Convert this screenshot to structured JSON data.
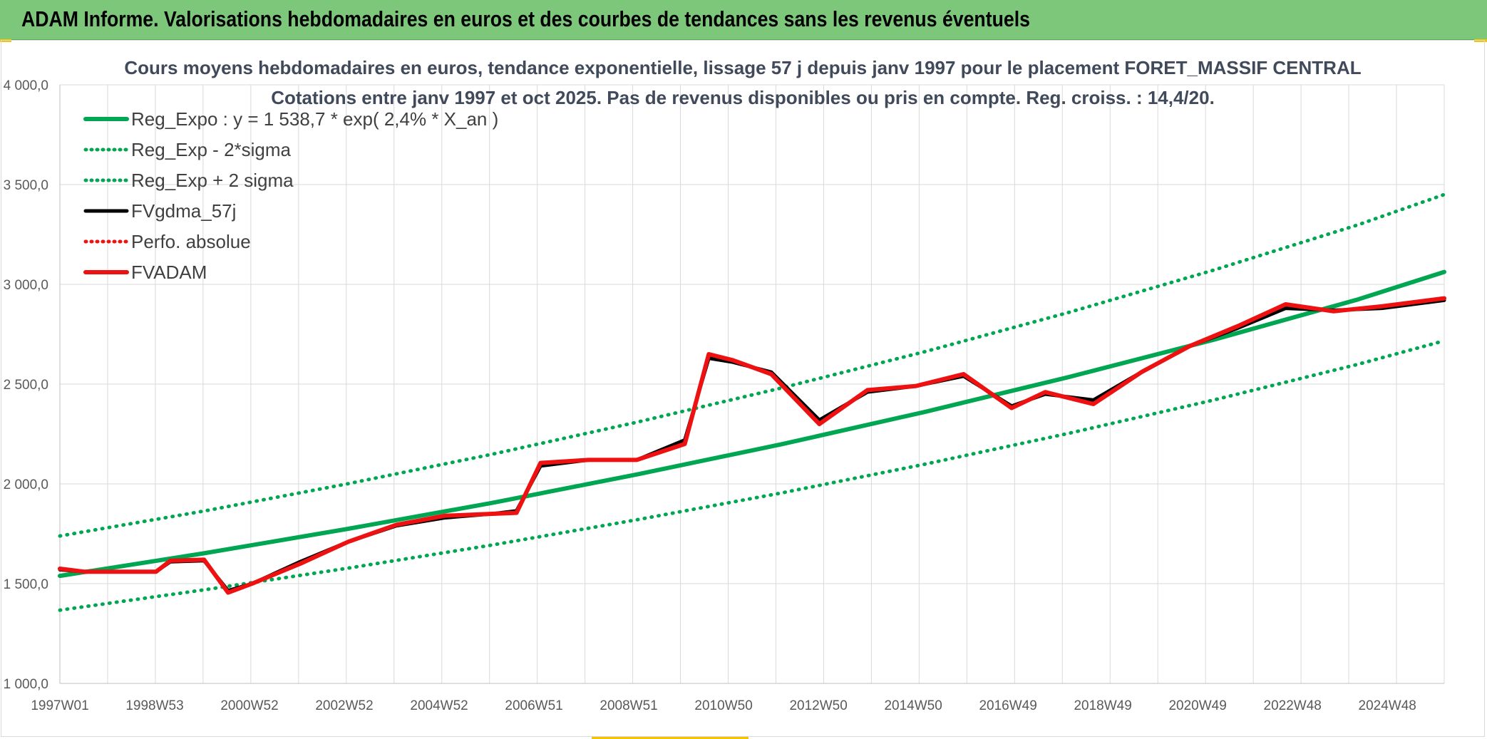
{
  "banner": {
    "title": "ADAM Informe. Valorisations hebdomadaires en euros et des courbes de tendances sans les revenus éventuels"
  },
  "colors": {
    "banner_bg": "#7dc77a",
    "corner_accent": "#f5c400",
    "trend_green": "#00a651",
    "smooth_black": "#000000",
    "adam_red": "#ee1111"
  },
  "chart_data": {
    "type": "line",
    "title": "Cours moyens hebdomadaires en euros, tendance exponentielle, lissage 57 j depuis janv 1997 pour le placement FORET_MASSIF CENTRAL",
    "subtitle": "Cotations entre janv 1997 et oct 2025. Pas de revenus disponibles ou pris en compte. Reg. croiss. : 14,4/20.",
    "xlabel": "",
    "ylabel": "",
    "x_tick_labels": [
      "1997W01",
      "1998W53",
      "2000W52",
      "2002W52",
      "2004W52",
      "2006W51",
      "2008W51",
      "2010W50",
      "2012W50",
      "2014W50",
      "2016W49",
      "2018W49",
      "2020W49",
      "2022W48",
      "2024W48"
    ],
    "x_range": [
      1997.0,
      2025.8
    ],
    "ylim": [
      1000,
      4000
    ],
    "y_ticks": [
      1000,
      1500,
      2000,
      2500,
      3000,
      3500,
      4000
    ],
    "y_tick_labels": [
      "1 000,0",
      "1 500,0",
      "2 000,0",
      "2 500,0",
      "3 000,0",
      "3 500,0",
      "4 000,0"
    ],
    "grid": true,
    "legend_position": "top-left",
    "series": [
      {
        "name": "Reg_Expo : y = 1 538,7 * exp( 2,4% *  X_an )",
        "style": "solid-thick",
        "color": "#00a651",
        "x": [
          1997.0,
          2000.0,
          2003.0,
          2006.0,
          2009.0,
          2012.0,
          2015.0,
          2018.0,
          2021.0,
          2024.0,
          2025.8
        ],
        "values": [
          1539,
          1652,
          1775,
          1905,
          2047,
          2198,
          2361,
          2536,
          2722,
          2924,
          3062
        ]
      },
      {
        "name": "Reg_Exp - 2*sigma",
        "style": "dotted",
        "color": "#00a651",
        "x": [
          1997.0,
          2000.0,
          2003.0,
          2006.0,
          2009.0,
          2012.0,
          2015.0,
          2018.0,
          2021.0,
          2024.0,
          2025.8
        ],
        "values": [
          1367,
          1469,
          1578,
          1694,
          1820,
          1954,
          2099,
          2254,
          2420,
          2599,
          2717
        ]
      },
      {
        "name": "Reg_Exp + 2 sigma",
        "style": "dotted",
        "color": "#00a651",
        "x": [
          1997.0,
          2000.0,
          2003.0,
          2006.0,
          2009.0,
          2012.0,
          2015.0,
          2018.0,
          2021.0,
          2024.0,
          2025.8
        ],
        "values": [
          1739,
          1864,
          2001,
          2149,
          2309,
          2480,
          2663,
          2860,
          3071,
          3298,
          3450
        ]
      },
      {
        "name": "FVgdma_57j",
        "style": "solid",
        "color": "#000000",
        "x": [
          1997.0,
          1997.5,
          1998.0,
          1999.0,
          1999.3,
          2000.0,
          2000.5,
          2001.0,
          2002.0,
          2003.0,
          2004.0,
          2005.0,
          2006.0,
          2006.5,
          2007.0,
          2008.0,
          2009.0,
          2010.0,
          2010.5,
          2011.0,
          2011.8,
          2012.8,
          2013.8,
          2014.8,
          2015.8,
          2016.8,
          2017.5,
          2018.5,
          2019.5,
          2020.5,
          2021.5,
          2022.5,
          2023.5,
          2024.5,
          2025.8
        ],
        "values": [
          1570,
          1560,
          1560,
          1560,
          1610,
          1615,
          1465,
          1500,
          1610,
          1710,
          1790,
          1830,
          1850,
          1865,
          2090,
          2120,
          2120,
          2220,
          2630,
          2610,
          2560,
          2320,
          2460,
          2490,
          2540,
          2390,
          2450,
          2420,
          2560,
          2690,
          2780,
          2880,
          2870,
          2880,
          2920
        ]
      },
      {
        "name": "Perfo. absolue",
        "style": "dotted",
        "color": "#ee1111",
        "x": [],
        "values": []
      },
      {
        "name": "FVADAM",
        "style": "solid-thick",
        "color": "#ee1111",
        "x": [
          1997.0,
          1997.5,
          1998.0,
          1999.0,
          1999.3,
          2000.0,
          2000.5,
          2001.0,
          2002.0,
          2003.0,
          2004.0,
          2005.0,
          2006.0,
          2006.5,
          2007.0,
          2008.0,
          2009.0,
          2010.0,
          2010.5,
          2011.0,
          2011.8,
          2012.8,
          2013.8,
          2014.8,
          2015.8,
          2016.8,
          2017.5,
          2018.5,
          2019.5,
          2020.5,
          2021.5,
          2022.5,
          2023.5,
          2024.5,
          2025.8
        ],
        "values": [
          1575,
          1560,
          1560,
          1560,
          1615,
          1620,
          1455,
          1500,
          1600,
          1710,
          1795,
          1840,
          1850,
          1855,
          2105,
          2120,
          2120,
          2200,
          2650,
          2620,
          2550,
          2300,
          2470,
          2490,
          2550,
          2380,
          2460,
          2400,
          2560,
          2690,
          2790,
          2900,
          2865,
          2890,
          2930
        ]
      }
    ]
  }
}
